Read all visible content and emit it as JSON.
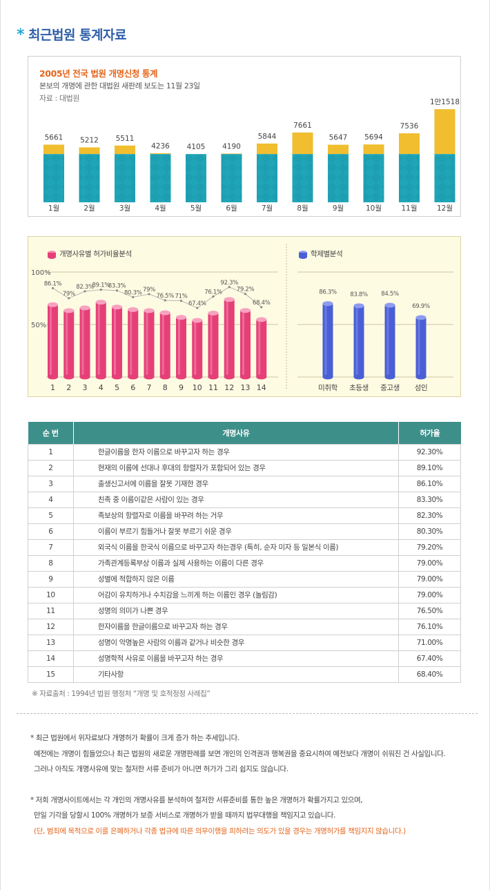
{
  "page": {
    "title": "최근법원 통계자료",
    "title_icon": "asterisk-icon"
  },
  "chart_data": [
    {
      "type": "bar",
      "title": "2005년 전국 법원 개명신청 통계",
      "subtitle": "본보의 개명에 관한 대법원 새판례 보도는 11월 23일",
      "source": "자료 : 대법원",
      "categories": [
        "1월",
        "2월",
        "3월",
        "4월",
        "5월",
        "6월",
        "7월",
        "8월",
        "9월",
        "10월",
        "11월",
        "12월"
      ],
      "values": [
        5661,
        5212,
        5511,
        4236,
        4105,
        4190,
        5844,
        7661,
        5647,
        5694,
        7536,
        11518
      ],
      "value_labels": [
        "5661",
        "5212",
        "5511",
        "4236",
        "4105",
        "4190",
        "5844",
        "7661",
        "5647",
        "5694",
        "7536",
        "1만1518"
      ],
      "colors": {
        "base": "#1fa5b7",
        "excess": "#f0be2e"
      },
      "grid": false
    },
    {
      "type": "bar",
      "title": "개명사유별 허가비율분석",
      "legend_icon_color": "#e63f78",
      "categories": [
        "1",
        "2",
        "3",
        "4",
        "5",
        "6",
        "7",
        "8",
        "9",
        "10",
        "11",
        "12",
        "13",
        "14"
      ],
      "values": [
        86.1,
        79,
        82.3,
        89.1,
        83.3,
        80.3,
        79,
        76.5,
        71,
        67.4,
        76.1,
        92.3,
        79.2,
        68.4
      ],
      "value_labels": [
        "86.1%",
        "79%",
        "82.3%",
        "89.1%",
        "83.3%",
        "80.3%",
        "79%",
        "76.5%",
        "71%",
        "67.4%",
        "76.1%",
        "92.3%",
        "79.2%",
        "68.4%"
      ],
      "y_ticks": [
        "100%",
        "50%"
      ],
      "ylim": [
        0,
        100
      ],
      "colors": {
        "bar": "#e63f78",
        "line": "#b5b5b5"
      },
      "grid": true
    },
    {
      "type": "bar",
      "title": "학제별분석",
      "legend_icon_color": "#4a5fd6",
      "categories": [
        "미취학",
        "초등생",
        "중고생",
        "성인"
      ],
      "values": [
        86.3,
        83.8,
        84.5,
        69.9
      ],
      "value_labels": [
        "86.3%",
        "83.8%",
        "84.5%",
        "69.9%"
      ],
      "ylim": [
        0,
        100
      ],
      "colors": {
        "bar": "#4a5fd6"
      },
      "grid": true
    },
    {
      "type": "table",
      "headers": [
        "순 번",
        "개명사유",
        "허가율"
      ],
      "rows": [
        [
          "1",
          "한글이름을 한자 이름으로 바꾸고자 하는 경우",
          "92.30%"
        ],
        [
          "2",
          "현재의  이름에 선대나 후대의 항렬자가 포함되어 있는 경우",
          "89.10%"
        ],
        [
          "3",
          "출생신고서에 이름을 잘못 기재한 경우",
          "86.10%"
        ],
        [
          "4",
          "친족 중 이름이같은 사람이 있는 경우",
          "83.30%"
        ],
        [
          "5",
          "족보상의 항렬자로 이름을 바꾸려 하는 거우",
          "82.30%"
        ],
        [
          "6",
          "이름이 부르기 힘들거나 잘못 부르기 쉬운 경우",
          "80.30%"
        ],
        [
          "7",
          "외국식 이름을 한국식 이름으로 바꾸고자 하는경우 (특히, 순자 미자 등 일본식 이름)",
          "79.20%"
        ],
        [
          "8",
          "가족관계등록부상 이름과 실제 사용하는 이름이 다른 경우",
          "79.00%"
        ],
        [
          "9",
          "성별에 적합하지 않은 이름",
          "79.00%"
        ],
        [
          "10",
          "어감이 유치하거나 수치감을 느끼게 하는 이름인 경우 (놀림감)",
          "79.00%"
        ],
        [
          "11",
          "성명의 의미가 나쁜 경우",
          "76.50%"
        ],
        [
          "12",
          "한자이름을 한글이름으로 바꾸고자 하는 경우",
          "76.10%"
        ],
        [
          "13",
          "성명이 악명높은 사람의 이름과 같거나 비슷한 경우",
          "71.00%"
        ],
        [
          "14",
          "성명학적 사유로 이름을 바꾸고자 하는 경우",
          "67.40%"
        ],
        [
          "15",
          "기타사항",
          "68.40%"
        ]
      ]
    }
  ],
  "table_source_note": "※ 자료출처 : 1994년 법원 행정처   “개명 및 호적정정 사례집”",
  "notes": {
    "p1_line1": "* 최근 법원에서 위자료보다 개명허가 확률이 크게 증가 하는 추세입니다.",
    "p1_line2": "예전에는 개명이 힘들었으나 최근 법원의 새로운 개명판례를 보면 개인의 인격권과 행복권을 중요시하여 예전보다 개명이 쉬워진 건 사실입니다.",
    "p1_line3": "그러나 아직도 개명사유에 맞는 철저한 서류 준비가 아니면 허가가 그리 쉽지도 않습니다.",
    "p2_line1": "* 저희 개명사이트에서는 각 개인의 개명사유를 분석하여 철저한 서류준비를 통한 높은 개명허가 확률가지고 있으며,",
    "p2_line2": "만일 기각을 당할시 100% 개명허가 보증 서비스로 개명허가 받을 때까지 법무대행을 책임지고 있습니다.",
    "p2_line3": "(단, 범죄에 목적으로 이를 은폐하거나 각종 법규에 따른 의무이행을 피하려는 의도가 있을 경우는 개명허가를 책임지지 않습니다.)",
    "warn_color": "#e4651c"
  }
}
